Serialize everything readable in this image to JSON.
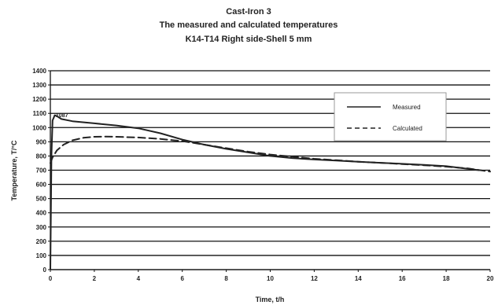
{
  "chart_data": {
    "type": "line",
    "title": [
      "Cast-Iron 3",
      "The measured and calculated temperatures",
      "K14-T14   Right side-Shell 5 mm"
    ],
    "xlabel": "Time, t/h",
    "ylabel": "Temperature, T/°C",
    "xlim": [
      0,
      20
    ],
    "ylim": [
      0,
      1400
    ],
    "x_ticks": [
      0,
      2,
      4,
      6,
      8,
      10,
      12,
      14,
      16,
      18,
      20
    ],
    "y_ticks": [
      0,
      100,
      200,
      300,
      400,
      500,
      600,
      700,
      800,
      900,
      1000,
      1100,
      1200,
      1300,
      1400
    ],
    "y_tick_labels": [
      "0",
      "100",
      "200",
      "300",
      "400",
      "500",
      "600",
      "700",
      "800",
      "900",
      "1000",
      "1100",
      "1200",
      "1300",
      "1400"
    ],
    "grid": "horizontal",
    "legend_position": "top-right",
    "annotation": "1087",
    "series": [
      {
        "name": "Measured",
        "style": "solid",
        "x": [
          0,
          0.05,
          0.1,
          0.2,
          0.3,
          0.5,
          1,
          2,
          3,
          4,
          5,
          6,
          7,
          8,
          9,
          10,
          11,
          12,
          13,
          14,
          15,
          16,
          17,
          18,
          19.5
        ],
        "y": [
          0,
          800,
          1050,
          1087,
          1080,
          1060,
          1045,
          1030,
          1015,
          995,
          960,
          915,
          880,
          850,
          825,
          800,
          785,
          775,
          768,
          760,
          752,
          745,
          737,
          728,
          700
        ]
      },
      {
        "name": "Calculated",
        "style": "dashed",
        "x": [
          0,
          0.1,
          0.3,
          0.6,
          1,
          1.5,
          2,
          2.5,
          3,
          4,
          5,
          6,
          7,
          8,
          9,
          10,
          11,
          12,
          13,
          14,
          15,
          16,
          17,
          18,
          19,
          20
        ],
        "y": [
          750,
          790,
          840,
          880,
          910,
          928,
          935,
          937,
          935,
          930,
          920,
          905,
          880,
          855,
          830,
          810,
          795,
          780,
          770,
          760,
          752,
          743,
          735,
          725,
          712,
          690
        ]
      }
    ]
  }
}
